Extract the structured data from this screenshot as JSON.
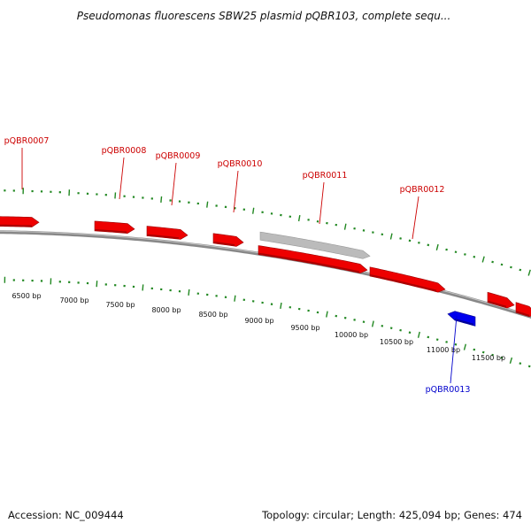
{
  "title": "Pseudomonas fluorescens SBW25 plasmid pQBR103, complete sequ...",
  "footer": {
    "accession": "Accession: NC_009444",
    "summary": "Topology: circular; Length: 425,094 bp; Genes: 474"
  },
  "colors": {
    "forward_gene": "#ee0000",
    "reverse_gene": "#0000ee",
    "pseudo_feature": "#bbbbbb",
    "label_forward": "#cc0000",
    "label_reverse": "#0000cc",
    "backbone": "#888888",
    "ticks": "#228822"
  },
  "gene_labels": [
    {
      "name": "pQBR0007",
      "strand": "forward"
    },
    {
      "name": "pQBR0008",
      "strand": "forward"
    },
    {
      "name": "pQBR0009",
      "strand": "forward"
    },
    {
      "name": "pQBR0010",
      "strand": "forward"
    },
    {
      "name": "pQBR0011",
      "strand": "forward"
    },
    {
      "name": "pQBR0012",
      "strand": "forward"
    },
    {
      "name": "pQBR0013",
      "strand": "reverse"
    }
  ],
  "bp_labels": [
    "6500 bp",
    "7000 bp",
    "7500 bp",
    "8000 bp",
    "8500 bp",
    "9000 bp",
    "9500 bp",
    "10000 bp",
    "10500 bp",
    "11000 bp",
    "11500 bp"
  ]
}
